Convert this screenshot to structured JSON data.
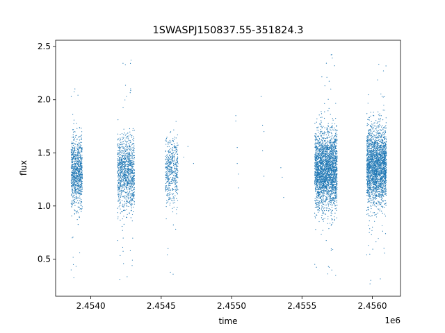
{
  "chart_data": {
    "type": "scatter",
    "title": "1SWASPJ150837.55-351824.3",
    "xlabel": "time",
    "ylabel": "flux",
    "x_offset_label": "1e6",
    "x_scale": 1000000,
    "xlim": [
      2.45375,
      2.4562
    ],
    "ylim": [
      0.15,
      2.56
    ],
    "xticks": [
      2.454,
      2.4545,
      2.455,
      2.4555,
      2.456
    ],
    "xtick_labels": [
      "2.4540",
      "2.4545",
      "2.4550",
      "2.4555",
      "2.4560"
    ],
    "yticks": [
      0.5,
      1.0,
      1.5,
      2.0,
      2.5
    ],
    "ytick_labels": [
      "0.5",
      "1.0",
      "1.5",
      "2.0",
      "2.5"
    ],
    "grid": false,
    "marker_color": "#1f77b4",
    "clusters": [
      {
        "x_min": 2.45386,
        "x_max": 2.45394,
        "flux_mean": 1.33,
        "flux_spread": 0.16,
        "count": 900,
        "flux_min": 0.3,
        "flux_max": 2.23
      },
      {
        "x_min": 2.45419,
        "x_max": 2.45431,
        "flux_mean": 1.33,
        "flux_spread": 0.17,
        "count": 1100,
        "flux_min": 0.26,
        "flux_max": 2.44
      },
      {
        "x_min": 2.45453,
        "x_max": 2.45462,
        "flux_mean": 1.33,
        "flux_spread": 0.15,
        "count": 500,
        "flux_min": 0.34,
        "flux_max": 2.01
      },
      {
        "x_min": 2.45559,
        "x_max": 2.45575,
        "flux_mean": 1.34,
        "flux_spread": 0.18,
        "count": 2600,
        "flux_min": 0.3,
        "flux_max": 2.43
      },
      {
        "x_min": 2.45596,
        "x_max": 2.4561,
        "flux_mean": 1.37,
        "flux_spread": 0.18,
        "count": 2400,
        "flux_min": 0.26,
        "flux_max": 2.42
      }
    ],
    "isolated_points": [
      [
        2.45466,
        1.46
      ],
      [
        2.45469,
        1.56
      ],
      [
        2.45473,
        1.4
      ],
      [
        2.45503,
        1.8
      ],
      [
        2.45503,
        1.85
      ],
      [
        2.45504,
        1.55
      ],
      [
        2.45504,
        1.4
      ],
      [
        2.45505,
        1.3
      ],
      [
        2.45505,
        1.17
      ],
      [
        2.45521,
        2.03
      ],
      [
        2.45522,
        1.76
      ],
      [
        2.45522,
        1.52
      ],
      [
        2.45523,
        1.7
      ],
      [
        2.45523,
        1.28
      ],
      [
        2.45535,
        1.36
      ],
      [
        2.45536,
        1.27
      ],
      [
        2.45537,
        1.08
      ]
    ]
  }
}
